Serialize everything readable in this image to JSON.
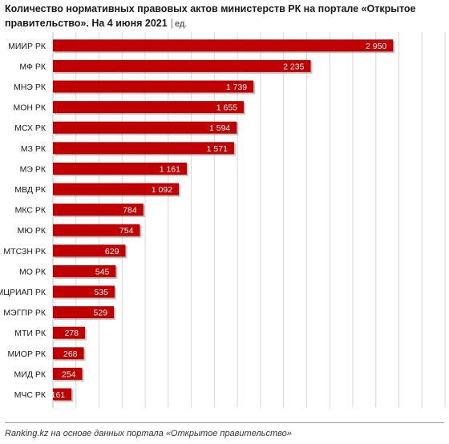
{
  "colors": {
    "bar": "#c00000",
    "bar_shadow": "#8f8f8f",
    "grid": "#d8d8d8",
    "value_text": "#ffffff",
    "dark_text": "#1a1a1a"
  },
  "chart_data": {
    "type": "bar",
    "orientation": "horizontal",
    "title": "Количество нормативных правовых актов министерств РК на портале «Открытое правительство». На 4 июня 2021",
    "unit": "ед.",
    "categories": [
      "МИИР РК",
      "МФ РК",
      "МНЭ РК",
      "МОН РК",
      "МСХ РК",
      "МЗ РК",
      "МЭ РК",
      "МВД РК",
      "МКС РК",
      "МЮ РК",
      "МТСЗН РК",
      "МО РК",
      "МЦРИАП РК",
      "МЭГПР РК",
      "МТИ РК",
      "МИОР РК",
      "МИД РК",
      "МЧС РК"
    ],
    "values": [
      2950,
      2235,
      1739,
      1655,
      1594,
      1571,
      1161,
      1092,
      784,
      754,
      629,
      545,
      535,
      529,
      278,
      268,
      254,
      161
    ],
    "value_labels": [
      "2 950",
      "2 235",
      "1 739",
      "1 655",
      "1 594",
      "1 571",
      "1 161",
      "1 092",
      "784",
      "754",
      "629",
      "545",
      "535",
      "529",
      "278",
      "268",
      "254",
      "161"
    ],
    "xlim": [
      0,
      3400
    ],
    "grid": true,
    "legend": false
  },
  "footer": {
    "source": "Ranking.kz на основе данных портала «Открытое правительство»"
  }
}
